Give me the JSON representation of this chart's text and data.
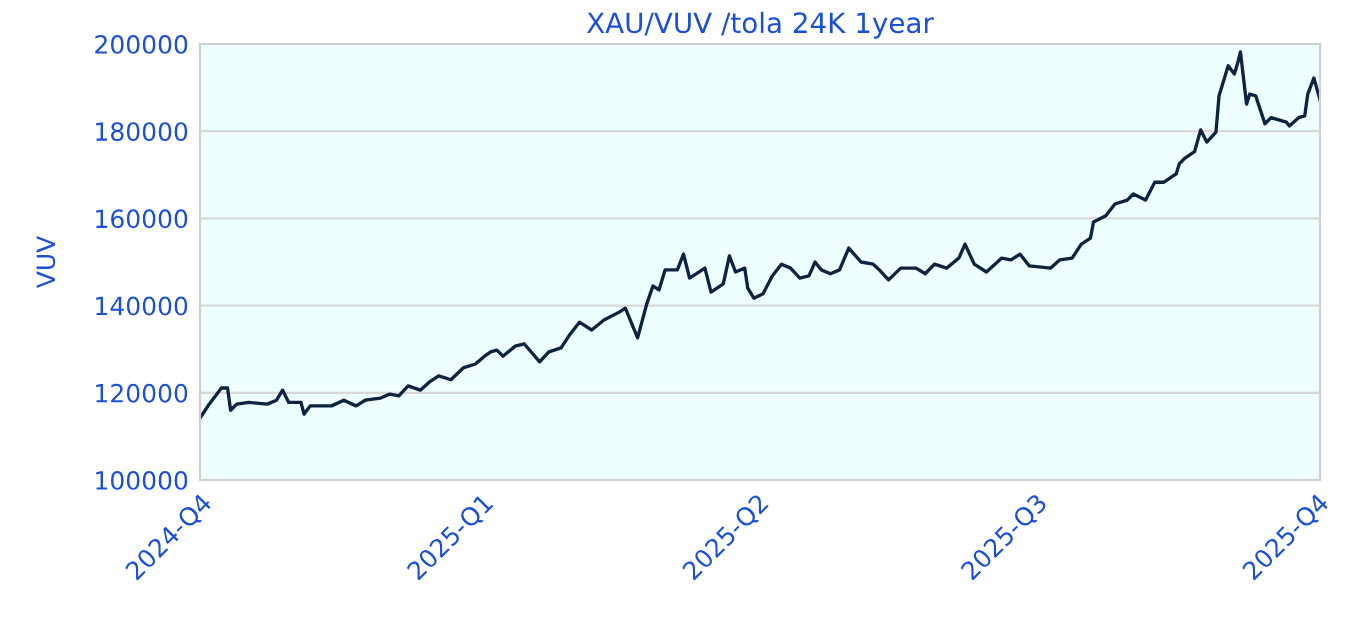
{
  "chart_data": {
    "type": "line",
    "title": "XAU/VUV /tola 24K 1year",
    "ylabel": "VUV",
    "x": [
      "2024-10-01",
      "2024-10-04",
      "2024-10-08",
      "2024-10-10",
      "2024-10-11",
      "2024-10-13",
      "2024-10-17",
      "2024-10-23",
      "2024-10-26",
      "2024-10-28",
      "2024-10-30",
      "2024-11-03",
      "2024-11-04",
      "2024-11-06",
      "2024-11-13",
      "2024-11-17",
      "2024-11-21",
      "2024-11-24",
      "2024-11-29",
      "2024-12-02",
      "2024-12-05",
      "2024-12-08",
      "2024-12-12",
      "2024-12-15",
      "2024-12-18",
      "2024-12-22",
      "2024-12-26",
      "2024-12-30",
      "2025-01-02",
      "2025-01-04",
      "2025-01-06",
      "2025-01-08",
      "2025-01-12",
      "2025-01-15",
      "2025-01-20",
      "2025-01-23",
      "2025-01-27",
      "2025-01-30",
      "2025-02-02",
      "2025-02-06",
      "2025-02-10",
      "2025-02-15",
      "2025-02-17",
      "2025-02-21",
      "2025-02-24",
      "2025-02-26",
      "2025-02-28",
      "2025-03-02",
      "2025-03-06",
      "2025-03-08",
      "2025-03-10",
      "2025-03-15",
      "2025-03-17",
      "2025-03-21",
      "2025-03-23",
      "2025-03-25",
      "2025-03-28",
      "2025-03-29",
      "2025-03-31",
      "2025-04-03",
      "2025-04-06",
      "2025-04-09",
      "2025-04-12",
      "2025-04-15",
      "2025-04-18",
      "2025-04-20",
      "2025-04-22",
      "2025-04-25",
      "2025-04-28",
      "2025-05-01",
      "2025-05-05",
      "2025-05-09",
      "2025-05-11",
      "2025-05-14",
      "2025-05-18",
      "2025-05-23",
      "2025-05-26",
      "2025-05-29",
      "2025-06-02",
      "2025-06-06",
      "2025-06-08",
      "2025-06-11",
      "2025-06-15",
      "2025-06-20",
      "2025-06-23",
      "2025-06-26",
      "2025-06-29",
      "2025-07-06",
      "2025-07-09",
      "2025-07-13",
      "2025-07-16",
      "2025-07-19",
      "2025-07-20",
      "2025-07-24",
      "2025-07-27",
      "2025-07-31",
      "2025-08-02",
      "2025-08-06",
      "2025-08-09",
      "2025-08-12",
      "2025-08-16",
      "2025-08-17",
      "2025-08-19",
      "2025-08-22",
      "2025-08-24",
      "2025-08-26",
      "2025-08-29",
      "2025-08-30",
      "2025-09-02",
      "2025-09-04",
      "2025-09-05",
      "2025-09-06",
      "2025-09-08",
      "2025-09-09",
      "2025-09-11",
      "2025-09-14",
      "2025-09-16",
      "2025-09-21",
      "2025-09-22",
      "2025-09-25",
      "2025-09-27",
      "2025-09-28",
      "2025-09-30",
      "2025-10-02"
    ],
    "series": [
      {
        "color": "#0d2340",
        "values": [
          114200,
          117400,
          121100,
          121100,
          116000,
          117400,
          117800,
          117400,
          118300,
          120600,
          117800,
          117800,
          115100,
          117000,
          117000,
          118300,
          117000,
          118300,
          118800,
          119700,
          119300,
          121600,
          120600,
          122500,
          123900,
          123000,
          125700,
          126600,
          128400,
          129400,
          129800,
          128400,
          130700,
          131200,
          127100,
          129400,
          130300,
          133500,
          136200,
          134400,
          136700,
          138500,
          139400,
          132600,
          140400,
          144500,
          143600,
          148200,
          148200,
          151800,
          146300,
          148600,
          143100,
          145000,
          151400,
          147700,
          148600,
          144000,
          141700,
          142700,
          146800,
          149500,
          148600,
          146300,
          146800,
          150000,
          148200,
          147300,
          148200,
          153200,
          150000,
          149500,
          148200,
          145900,
          148600,
          148600,
          147300,
          149500,
          148600,
          150900,
          154100,
          149500,
          147700,
          150900,
          150500,
          151800,
          149100,
          148600,
          150500,
          150900,
          154100,
          155500,
          159200,
          160600,
          163300,
          164200,
          165600,
          164200,
          168300,
          168300,
          170200,
          172500,
          173900,
          175300,
          180300,
          177500,
          179800,
          188100,
          195000,
          193100,
          195400,
          198200,
          186200,
          188500,
          188100,
          181700,
          183100,
          182100,
          181200,
          183100,
          183500,
          188500,
          192200,
          187200
        ]
      }
    ],
    "xlim": [
      "2024-10-01",
      "2025-10-02"
    ],
    "xticks": [
      {
        "value": "2024-10-01",
        "label": "2024-Q4"
      },
      {
        "value": "2025-01-01",
        "label": "2025-Q1"
      },
      {
        "value": "2025-04-01",
        "label": "2025-Q2"
      },
      {
        "value": "2025-07-01",
        "label": "2025-Q3"
      },
      {
        "value": "2025-10-01",
        "label": "2025-Q4"
      }
    ],
    "ylim": [
      100000,
      200000
    ],
    "yticks": [
      100000,
      120000,
      140000,
      160000,
      180000,
      200000
    ],
    "grid": "y",
    "legend": false,
    "marker": "none",
    "line_style": "solid"
  }
}
